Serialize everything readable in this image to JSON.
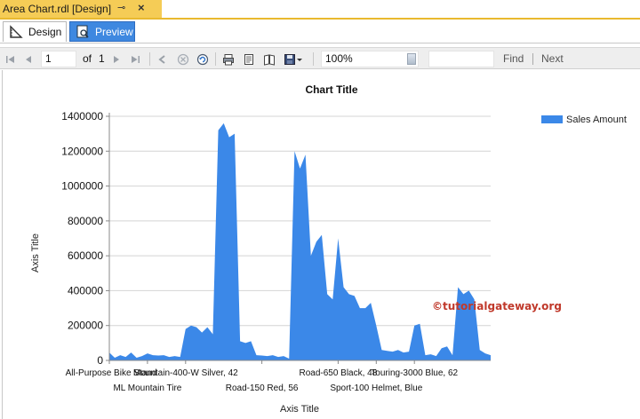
{
  "doc_tab": {
    "title": "Area Chart.rdl [Design]",
    "pin_icon": "pin-icon",
    "close_icon": "close-icon"
  },
  "view_tabs": [
    {
      "label": "Design",
      "icon": "design-ruler-icon",
      "active": false
    },
    {
      "label": "Preview",
      "icon": "preview-icon",
      "active": true
    }
  ],
  "toolbar": {
    "page_current": "1",
    "of_label": "of",
    "page_total": "1",
    "zoom": "100%",
    "find_label": "Find",
    "next_label": "Next"
  },
  "watermark": "©tutorialgateway.org",
  "colors": {
    "accent_tab": "#f5cc56",
    "preview_tab": "#3e88e0",
    "series": "#3b88e8",
    "watermark": "#c0392b"
  },
  "chart_data": {
    "type": "area",
    "title": "Chart Title",
    "xlabel": "Axis Title",
    "ylabel": "Axis Title",
    "ylim": [
      0,
      1400000
    ],
    "yticks": [
      0,
      200000,
      400000,
      600000,
      800000,
      1000000,
      1200000,
      1400000
    ],
    "ytick_labels": [
      "0",
      "200000",
      "400000",
      "600000",
      "800000",
      "1000000",
      "1200000",
      "1400000"
    ],
    "grid": true,
    "legend": {
      "position": "top-right",
      "entries": [
        "Sales Amount"
      ]
    },
    "x_count": 71,
    "x_labels": [
      {
        "index": 0,
        "label": "All-Purpose Bike Stand",
        "row": 0
      },
      {
        "index": 7,
        "label": "ML Mountain Tire",
        "row": 1
      },
      {
        "index": 14,
        "label": "Mountain-400-W Silver, 42",
        "row": 0
      },
      {
        "index": 28,
        "label": "Road-150 Red, 56",
        "row": 1
      },
      {
        "index": 42,
        "label": "Road-650 Black, 48",
        "row": 0
      },
      {
        "index": 49,
        "label": "Sport-100 Helmet, Blue",
        "row": 1
      },
      {
        "index": 56,
        "label": "Touring-3000 Blue, 62",
        "row": 0
      }
    ],
    "series": [
      {
        "name": "Sales Amount",
        "color": "#3b88e8",
        "values": [
          45000,
          15000,
          30000,
          20000,
          45000,
          15000,
          25000,
          40000,
          30000,
          28000,
          30000,
          20000,
          25000,
          20000,
          180000,
          200000,
          190000,
          160000,
          190000,
          150000,
          1320000,
          1360000,
          1280000,
          1300000,
          110000,
          100000,
          110000,
          30000,
          28000,
          25000,
          30000,
          20000,
          25000,
          10000,
          1200000,
          1100000,
          1180000,
          600000,
          680000,
          720000,
          380000,
          350000,
          700000,
          420000,
          380000,
          370000,
          300000,
          300000,
          330000,
          200000,
          60000,
          55000,
          50000,
          60000,
          45000,
          50000,
          200000,
          210000,
          30000,
          35000,
          25000,
          70000,
          80000,
          30000,
          420000,
          380000,
          400000,
          350000,
          60000,
          40000,
          30000
        ]
      }
    ]
  }
}
